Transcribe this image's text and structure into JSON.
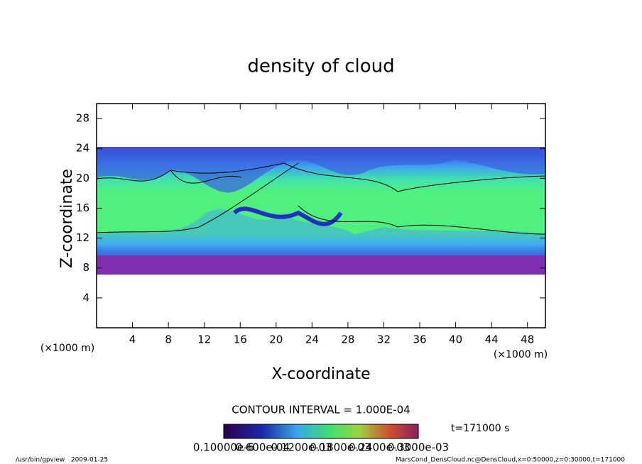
{
  "chart_data": {
    "type": "heatmap",
    "title": "density of cloud",
    "xlabel": "X-coordinate",
    "ylabel": "Z-coordinate",
    "xunit": "(×1000 m)",
    "yunit": "(×1000 m)",
    "xlim": [
      0,
      50
    ],
    "xticks": [
      4,
      8,
      12,
      16,
      20,
      24,
      28,
      32,
      36,
      40,
      44,
      48
    ],
    "ylim": [
      0,
      30
    ],
    "yticks": [
      4,
      8,
      12,
      16,
      20,
      24,
      28
    ],
    "contour_interval": "CONTOUR INTERVAL = 1.000E-04",
    "colorbar_labels": [
      "0.10000e-6",
      "0.600e-04",
      "0.1200e-03",
      "0.1800e-03",
      "0.2400e-03",
      "0.3000e-03"
    ],
    "time": "t=171000 s",
    "footer_left": "/usr/bin/gpview   2009-01-25",
    "footer_right": "MarsCond_DensCloud.nc@DensCloud,x=0:50000,z=0:30000,t=171000"
  }
}
